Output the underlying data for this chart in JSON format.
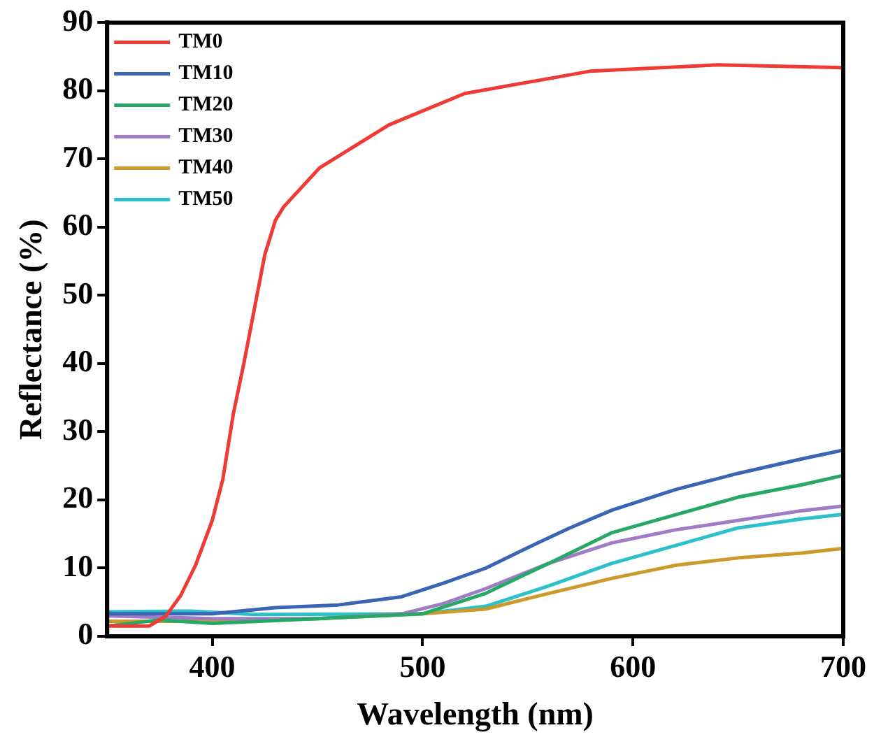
{
  "chart_data": {
    "type": "line",
    "xlabel": "Wavelength (nm)",
    "ylabel": "Reflectance (%)",
    "xlim": [
      350,
      700
    ],
    "ylim": [
      0,
      90
    ],
    "xticks": [
      400,
      500,
      600,
      700
    ],
    "yticks": [
      0,
      10,
      20,
      30,
      40,
      50,
      60,
      70,
      80,
      90
    ],
    "grid": false,
    "legend": "top left",
    "marker": "none",
    "line_style": "solid",
    "series": [
      {
        "name": "TM0",
        "color": "#ee3b36",
        "x": [
          350,
          370,
          378,
          385,
          392,
          400,
          405,
          410,
          415,
          420,
          425,
          430,
          434,
          451,
          484,
          520,
          580,
          640,
          700
        ],
        "values": [
          1.5,
          1.5,
          3,
          6,
          10.4,
          17,
          23,
          32.6,
          40,
          48,
          56,
          61,
          63,
          68.7,
          75,
          79.6,
          82.9,
          83.8,
          83.4
        ]
      },
      {
        "name": "TM10",
        "color": "#3a64b4",
        "x": [
          350,
          400,
          430,
          460,
          490,
          510,
          530,
          550,
          570,
          590,
          620,
          650,
          680,
          700
        ],
        "values": [
          3.3,
          3.3,
          4.2,
          4.6,
          5.8,
          7.8,
          10,
          13,
          15.9,
          18.5,
          21.5,
          23.9,
          26,
          27.3
        ]
      },
      {
        "name": "TM20",
        "color": "#28a866",
        "x": [
          350,
          375,
          400,
          450,
          500,
          530,
          560,
          590,
          620,
          650,
          680,
          700
        ],
        "values": [
          1.5,
          2.4,
          1.9,
          2.6,
          3.3,
          6.3,
          10.7,
          15.2,
          17.8,
          20.4,
          22.2,
          23.6
        ]
      },
      {
        "name": "TM30",
        "color": "#a07cc4",
        "x": [
          350,
          400,
          450,
          490,
          510,
          530,
          560,
          590,
          620,
          650,
          680,
          700
        ],
        "values": [
          3,
          2.6,
          2.6,
          3.3,
          4.8,
          7,
          10.7,
          13.7,
          15.6,
          17,
          18.4,
          19.1
        ]
      },
      {
        "name": "TM40",
        "color": "#cc9a2a",
        "x": [
          350,
          400,
          450,
          500,
          530,
          560,
          590,
          620,
          650,
          680,
          700
        ],
        "values": [
          2.2,
          2.2,
          2.6,
          3.3,
          4,
          6.3,
          8.5,
          10.4,
          11.5,
          12.2,
          12.9
        ]
      },
      {
        "name": "TM50",
        "color": "#2cc0c8",
        "x": [
          350,
          390,
          420,
          500,
          530,
          560,
          590,
          620,
          650,
          680,
          700
        ],
        "values": [
          3.6,
          3.7,
          3.2,
          3.3,
          4.4,
          7.4,
          10.7,
          13.3,
          15.9,
          17.2,
          17.9
        ]
      }
    ]
  }
}
